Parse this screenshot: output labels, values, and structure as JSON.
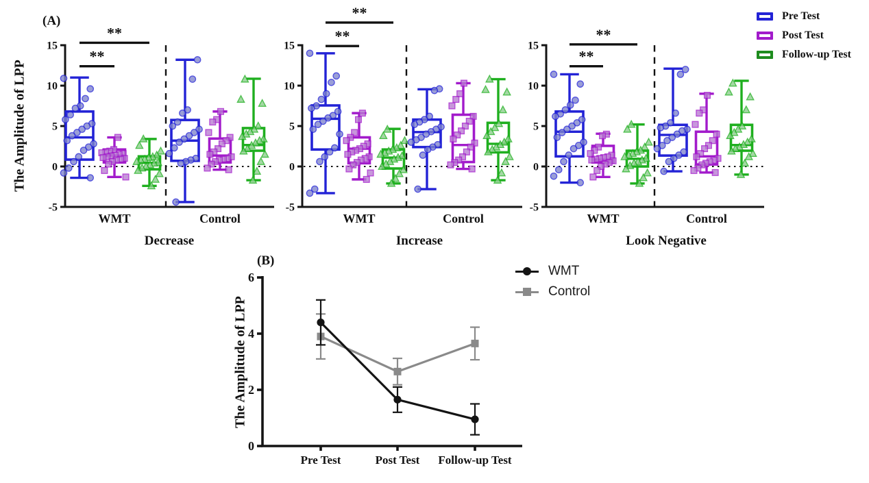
{
  "figure": {
    "panel_a_label": "(A)",
    "panel_b_label": "(B)",
    "y_axis_title_a": "The Amplitude of LPP",
    "y_axis_title_b": "The Amplitude of LPP",
    "colors": {
      "pre": "#2323D6",
      "post": "#A21BCB",
      "followup": "#1FAF1F",
      "followup_legend": "#1E8C1E",
      "pre_fill": "#7E84CC",
      "post_fill": "#B87BD2",
      "followup_fill": "#8BCE8B",
      "wmt": "#141414",
      "control": "#8A8A8A",
      "axis": "#141414"
    },
    "legend_a": [
      {
        "label": "Pre Test",
        "color_key": "pre"
      },
      {
        "label": "Post Test",
        "color_key": "post"
      },
      {
        "label": "Follow-up Test",
        "color_key": "followup_legend"
      }
    ],
    "legend_b": [
      {
        "label": "WMT",
        "color_key": "wmt",
        "marker": "circle"
      },
      {
        "label": "Control",
        "color_key": "control",
        "marker": "square"
      }
    ]
  },
  "chart_data": [
    {
      "type": "box",
      "panel": "A",
      "title": "Decrease",
      "ylabel": "The Amplitude of LPP",
      "ylim": [
        -5,
        15
      ],
      "yticks": [
        -5,
        0,
        5,
        10,
        15
      ],
      "zero_line": 0,
      "groups": [
        "WMT",
        "Control"
      ],
      "series": [
        "Pre Test",
        "Post Test",
        "Follow-up Test"
      ],
      "significance": [
        {
          "label": "**",
          "from": 0,
          "to": 2,
          "y": 15.3
        },
        {
          "label": "**",
          "from": 0,
          "to": 1,
          "y": 12.4
        }
      ],
      "boxes": [
        {
          "group": "WMT",
          "series": "Pre Test",
          "lo": -1.4,
          "q1": 0.85,
          "med": 3.6,
          "q3": 6.8,
          "hi": 11.0,
          "points": [
            10.9,
            9.6,
            8.4,
            7.5,
            7.2,
            6.4,
            5.8,
            5.3,
            5.0,
            4.6,
            4.2,
            3.8,
            3.2,
            2.8,
            2.4,
            2.0,
            1.2,
            0.6,
            -0.2,
            -0.8,
            -1.4
          ]
        },
        {
          "group": "WMT",
          "series": "Post Test",
          "lo": -1.3,
          "q1": 0.5,
          "med": 1.35,
          "q3": 2.1,
          "hi": 3.6,
          "points": [
            3.6,
            2.1,
            1.9,
            1.8,
            1.7,
            1.6,
            1.5,
            1.4,
            1.3,
            1.2,
            1.1,
            1.0,
            0.9,
            0.8,
            0.6,
            0.3,
            -0.5,
            -1.3
          ]
        },
        {
          "group": "WMT",
          "series": "Follow-up Test",
          "lo": -2.4,
          "q1": -0.35,
          "med": 0.45,
          "q3": 1.25,
          "hi": 3.4,
          "points": [
            3.4,
            2.6,
            1.9,
            1.4,
            1.2,
            1.1,
            0.9,
            0.8,
            0.6,
            0.5,
            0.4,
            0.2,
            0.0,
            -0.2,
            -0.5,
            -0.9,
            -1.6,
            -2.4
          ]
        },
        {
          "group": "Control",
          "series": "Pre Test",
          "lo": -4.4,
          "q1": 0.7,
          "med": 3.2,
          "q3": 5.75,
          "hi": 13.2,
          "points": [
            13.2,
            10.8,
            7.0,
            6.6,
            5.5,
            5.0,
            4.6,
            4.2,
            3.8,
            3.4,
            3.0,
            2.3,
            1.6,
            1.0,
            0.8,
            0.6,
            0.4,
            -4.4
          ]
        },
        {
          "group": "Control",
          "series": "Post Test",
          "lo": -0.4,
          "q1": 0.5,
          "med": 1.35,
          "q3": 3.45,
          "hi": 6.8,
          "points": [
            6.8,
            5.8,
            5.5,
            4.2,
            3.6,
            3.2,
            2.8,
            2.2,
            1.8,
            1.5,
            1.2,
            1.0,
            0.9,
            0.8,
            0.6,
            0.3,
            -0.2,
            -0.4
          ]
        },
        {
          "group": "Control",
          "series": "Follow-up Test",
          "lo": -1.7,
          "q1": 1.95,
          "med": 2.65,
          "q3": 4.75,
          "hi": 10.85,
          "points": [
            10.8,
            8.3,
            7.8,
            5.0,
            4.6,
            4.3,
            4.0,
            3.7,
            3.4,
            3.2,
            2.9,
            2.6,
            2.2,
            1.9,
            1.5,
            0.6,
            -0.6,
            -1.7
          ]
        }
      ]
    },
    {
      "type": "box",
      "panel": "A",
      "title": "Increase",
      "ylabel": "The Amplitude of LPP",
      "ylim": [
        -5,
        15
      ],
      "yticks": [
        -5,
        0,
        5,
        10,
        15
      ],
      "zero_line": 0,
      "groups": [
        "WMT",
        "Control"
      ],
      "series": [
        "Pre Test",
        "Post Test",
        "Follow-up Test"
      ],
      "significance": [
        {
          "label": "**",
          "from": 0,
          "to": 2,
          "y": 17.8
        },
        {
          "label": "**",
          "from": 0,
          "to": 1,
          "y": 14.9
        }
      ],
      "boxes": [
        {
          "group": "WMT",
          "series": "Pre Test",
          "lo": -3.3,
          "q1": 2.1,
          "med": 5.9,
          "q3": 7.55,
          "hi": 14.0,
          "points": [
            14.0,
            11.2,
            10.4,
            9.0,
            8.3,
            7.5,
            7.2,
            6.8,
            6.3,
            6.0,
            5.6,
            5.2,
            4.6,
            4.0,
            2.3,
            1.8,
            1.2,
            0.6,
            -2.8,
            -3.3
          ]
        },
        {
          "group": "WMT",
          "series": "Post Test",
          "lo": -1.6,
          "q1": 0.4,
          "med": 2.2,
          "q3": 3.6,
          "hi": 6.6,
          "points": [
            6.6,
            5.8,
            4.2,
            3.6,
            3.2,
            2.8,
            2.5,
            2.2,
            2.0,
            1.8,
            1.5,
            1.2,
            1.0,
            0.8,
            0.5,
            0.2,
            -0.3,
            -0.8,
            -1.6
          ]
        },
        {
          "group": "WMT",
          "series": "Follow-up Test",
          "lo": -2.1,
          "q1": -0.25,
          "med": 1.1,
          "q3": 2.1,
          "hi": 4.65,
          "points": [
            4.6,
            3.8,
            3.2,
            2.6,
            2.3,
            2.1,
            1.9,
            1.7,
            1.5,
            1.3,
            1.1,
            0.9,
            0.6,
            0.3,
            0.0,
            -0.4,
            -0.9,
            -1.5,
            -2.1
          ]
        },
        {
          "group": "Control",
          "series": "Pre Test",
          "lo": -2.8,
          "q1": 2.4,
          "med": 4.25,
          "q3": 5.8,
          "hi": 9.55,
          "points": [
            9.6,
            9.4,
            6.2,
            5.8,
            5.5,
            5.2,
            4.9,
            4.6,
            4.3,
            4.0,
            3.6,
            3.3,
            3.0,
            2.7,
            2.4,
            2.1,
            1.4,
            -2.8
          ]
        },
        {
          "group": "Control",
          "series": "Post Test",
          "lo": -0.3,
          "q1": 0.55,
          "med": 2.65,
          "q3": 6.4,
          "hi": 10.3,
          "points": [
            10.3,
            9.0,
            8.3,
            7.5,
            6.2,
            5.6,
            5.0,
            4.4,
            3.9,
            3.4,
            2.9,
            2.4,
            1.8,
            1.2,
            0.8,
            0.5,
            0.2,
            -0.3
          ]
        },
        {
          "group": "Control",
          "series": "Follow-up Test",
          "lo": -1.7,
          "q1": 1.75,
          "med": 2.8,
          "q3": 5.4,
          "hi": 10.8,
          "points": [
            10.8,
            9.5,
            9.2,
            7.0,
            5.3,
            4.8,
            4.3,
            3.8,
            3.4,
            3.0,
            2.7,
            2.4,
            2.1,
            1.8,
            1.2,
            0.6,
            -0.8,
            -1.7
          ]
        }
      ]
    },
    {
      "type": "box",
      "panel": "A",
      "title": "Look Negative",
      "ylabel": "The Amplitude of LPP",
      "ylim": [
        -5,
        15
      ],
      "yticks": [
        -5,
        0,
        5,
        10,
        15
      ],
      "zero_line": 0,
      "groups": [
        "WMT",
        "Control"
      ],
      "series": [
        "Pre Test",
        "Post Test",
        "Follow-up Test"
      ],
      "significance": [
        {
          "label": "**",
          "from": 0,
          "to": 2,
          "y": 15.1
        },
        {
          "label": "**",
          "from": 0,
          "to": 1,
          "y": 12.4
        }
      ],
      "boxes": [
        {
          "group": "WMT",
          "series": "Pre Test",
          "lo": -2.0,
          "q1": 1.25,
          "med": 4.3,
          "q3": 6.8,
          "hi": 11.4,
          "points": [
            11.4,
            10.2,
            8.2,
            7.6,
            7.0,
            6.5,
            6.2,
            5.8,
            5.4,
            5.0,
            4.6,
            4.2,
            3.6,
            3.0,
            2.6,
            2.2,
            1.4,
            0.6,
            -0.4,
            -1.2,
            -2.0
          ]
        },
        {
          "group": "WMT",
          "series": "Post Test",
          "lo": -1.3,
          "q1": 0.5,
          "med": 0.85,
          "q3": 2.55,
          "hi": 4.05,
          "points": [
            4.0,
            3.8,
            2.4,
            2.0,
            1.6,
            1.4,
            1.2,
            1.1,
            1.0,
            0.9,
            0.8,
            0.7,
            0.5,
            0.3,
            0.0,
            -0.5,
            -1.3
          ]
        },
        {
          "group": "WMT",
          "series": "Follow-up Test",
          "lo": -2.1,
          "q1": 0.0,
          "med": 0.95,
          "q3": 1.95,
          "hi": 5.2,
          "points": [
            5.2,
            4.6,
            3.0,
            2.4,
            2.0,
            1.8,
            1.6,
            1.4,
            1.2,
            1.0,
            0.8,
            0.6,
            0.4,
            0.1,
            -0.3,
            -0.8,
            -1.4,
            -2.1
          ]
        },
        {
          "group": "Control",
          "series": "Pre Test",
          "lo": -0.6,
          "q1": 1.35,
          "med": 3.9,
          "q3": 5.15,
          "hi": 12.1,
          "points": [
            12.0,
            11.4,
            6.6,
            5.4,
            5.0,
            4.8,
            4.6,
            4.4,
            4.0,
            3.6,
            3.2,
            2.6,
            2.2,
            1.8,
            1.4,
            1.0,
            0.6,
            -0.6
          ]
        },
        {
          "group": "Control",
          "series": "Post Test",
          "lo": -0.75,
          "q1": 0.25,
          "med": 1.25,
          "q3": 4.3,
          "hi": 9.0,
          "points": [
            8.8,
            7.0,
            6.6,
            5.2,
            4.0,
            3.2,
            2.6,
            2.2,
            1.6,
            1.2,
            1.0,
            0.8,
            0.6,
            0.4,
            0.2,
            -0.2,
            -0.5,
            -0.75
          ]
        },
        {
          "group": "Control",
          "series": "Follow-up Test",
          "lo": -1.0,
          "q1": 1.95,
          "med": 2.65,
          "q3": 5.15,
          "hi": 10.6,
          "points": [
            10.3,
            9.2,
            8.6,
            7.0,
            5.0,
            4.6,
            4.2,
            3.8,
            3.4,
            3.0,
            2.7,
            2.4,
            2.2,
            1.9,
            1.6,
            1.2,
            0.4,
            -1.0
          ]
        }
      ]
    },
    {
      "type": "line",
      "panel": "B",
      "ylabel": "The Amplitude of LPP",
      "ylim": [
        0,
        6
      ],
      "yticks": [
        0,
        2,
        4,
        6
      ],
      "categories": [
        "Pre Test",
        "Post Test",
        "Follow-up Test"
      ],
      "series": [
        {
          "name": "WMT",
          "color_key": "wmt",
          "marker": "circle",
          "values": [
            4.4,
            1.65,
            0.95
          ],
          "errors": [
            0.8,
            0.45,
            0.55
          ]
        },
        {
          "name": "Control",
          "color_key": "control",
          "marker": "square",
          "values": [
            3.9,
            2.65,
            3.65
          ],
          "errors": [
            0.8,
            0.47,
            0.58
          ]
        }
      ]
    }
  ]
}
